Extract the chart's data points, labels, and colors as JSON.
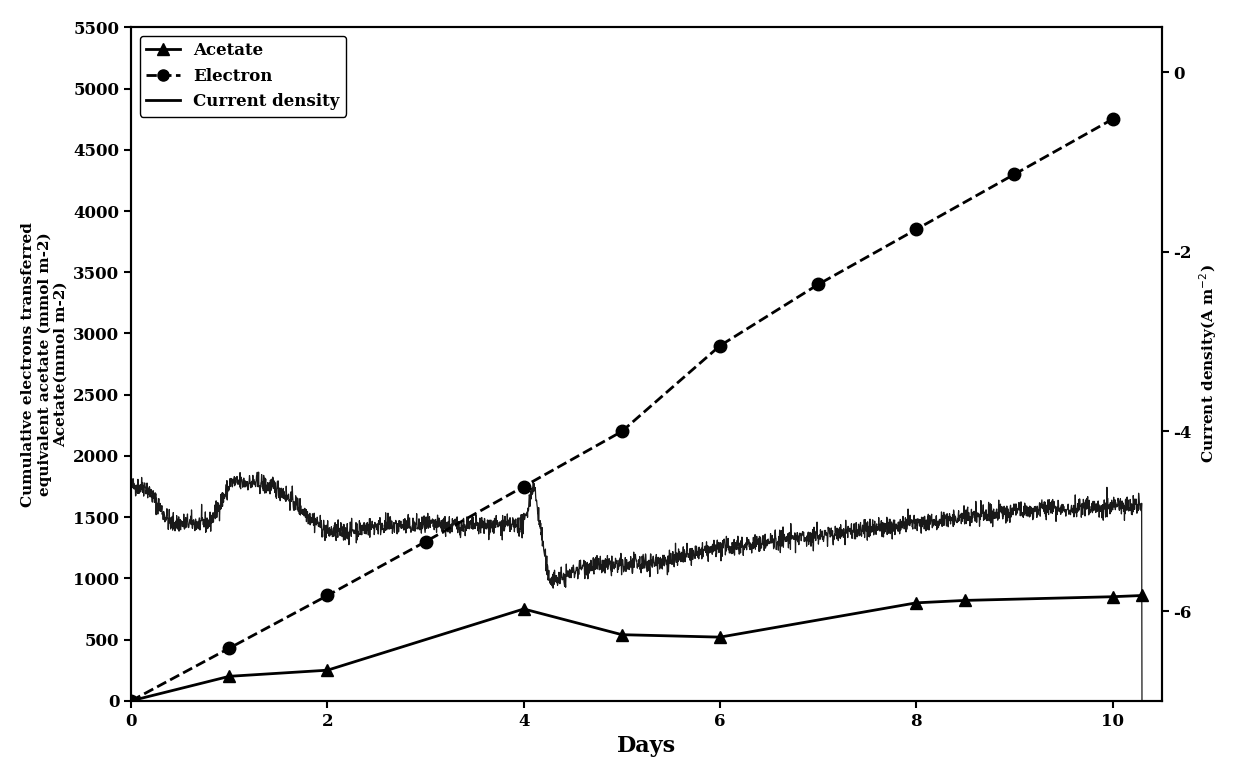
{
  "title": "",
  "xlabel": "Days",
  "ylabel_left1": "Cumulative electrons transferred",
  "ylabel_left2": "equivalent acetate (mmol m-2)",
  "ylabel_left3": "Acetate(mmol m-2)",
  "ylabel_right": "Current density(A m⁻²)",
  "xlim": [
    0,
    10.5
  ],
  "ylim_left": [
    0,
    5500
  ],
  "ylim_right": [
    -7,
    0.5
  ],
  "yticks_left": [
    0,
    500,
    1000,
    1500,
    2000,
    2500,
    3000,
    3500,
    4000,
    4500,
    5000,
    5500
  ],
  "yticks_right": [
    -6,
    -4,
    -2,
    0
  ],
  "xticks": [
    0,
    2,
    4,
    6,
    8,
    10
  ],
  "acetate_x": [
    0,
    1,
    2,
    4,
    5,
    6,
    8,
    8.5,
    10,
    10.3
  ],
  "acetate_y": [
    0,
    200,
    250,
    750,
    540,
    520,
    800,
    820,
    850,
    860
  ],
  "electron_x": [
    0,
    1,
    2,
    3,
    4,
    5,
    6,
    7,
    8,
    9,
    10
  ],
  "electron_y": [
    0,
    430,
    860,
    1300,
    1750,
    2200,
    2900,
    3400,
    3850,
    4300,
    4750
  ],
  "current_density_noise_seed": 42,
  "noise_amplitude": 40,
  "background_color": "#ffffff",
  "line_color": "#000000"
}
